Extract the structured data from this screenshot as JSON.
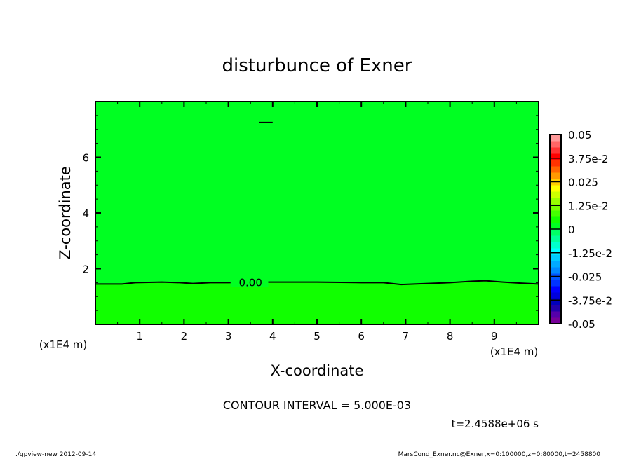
{
  "chart_data": {
    "type": "heatmap",
    "title": "disturbunce of Exner",
    "xlabel": "X-coordinate",
    "ylabel": "Z-coordinate",
    "x_unit_label": "(x1E4 m)",
    "y_unit_label": "(x1E4 m)",
    "xlim": [
      0,
      10
    ],
    "ylim": [
      0,
      8
    ],
    "x_ticks": [
      "1",
      "2",
      "3",
      "4",
      "5",
      "6",
      "7",
      "8",
      "9"
    ],
    "y_ticks": [
      "2",
      "4",
      "6"
    ],
    "contour_interval_text": "CONTOUR INTERVAL = 5.000E-03",
    "time_text": "t=2.4588e+06 s",
    "contour_label": "0.00",
    "contour_zero_line": {
      "x": [
        0,
        0.6,
        0.9,
        1.5,
        1.9,
        2.2,
        2.6,
        3.0,
        4.0,
        5.0,
        6.0,
        6.5,
        6.9,
        7.5,
        8.0,
        8.5,
        8.8,
        9.2,
        9.6,
        10
      ],
      "z": [
        1.45,
        1.45,
        1.5,
        1.52,
        1.5,
        1.47,
        1.5,
        1.5,
        1.52,
        1.52,
        1.5,
        1.5,
        1.43,
        1.47,
        1.5,
        1.55,
        1.57,
        1.52,
        1.48,
        1.45
      ]
    },
    "small_contour": {
      "x": [
        3.7,
        4.0
      ],
      "z": [
        7.25,
        7.25
      ]
    },
    "fill_regions": [
      {
        "range": [
          -0.005,
          0
        ],
        "color": "#00ff22",
        "where": "above zero contour"
      },
      {
        "range": [
          0,
          0.005
        ],
        "color": "#11ff00",
        "where": "below zero contour"
      }
    ],
    "colorbar": {
      "min": -0.05,
      "max": 0.05,
      "step": 0.005,
      "labels": [
        "0.05",
        "3.75e-2",
        "0.025",
        "1.25e-2",
        "0",
        "-1.25e-2",
        "-0.025",
        "-3.75e-2",
        "-0.05"
      ],
      "colors_bottom_to_top": [
        "#770099",
        "#5500aa",
        "#2200aa",
        "#0000bb",
        "#0000dd",
        "#0000ff",
        "#0033ff",
        "#0055ff",
        "#0088ff",
        "#00aaff",
        "#00ccff",
        "#00ffff",
        "#00ffcc",
        "#00ff99",
        "#00ff66",
        "#00ff22",
        "#11ff00",
        "#44ff00",
        "#77ff00",
        "#99ff00",
        "#ccff00",
        "#ffff00",
        "#ffcc00",
        "#ff9900",
        "#ff6600",
        "#ff3300",
        "#ff0000",
        "#ff3333",
        "#ff6666",
        "#ff9999"
      ]
    }
  },
  "footer": {
    "left": "./gpview-new  2012-09-14",
    "right": "MarsCond_Exner.nc@Exner,x=0:100000,z=0:80000,t=2458800"
  }
}
